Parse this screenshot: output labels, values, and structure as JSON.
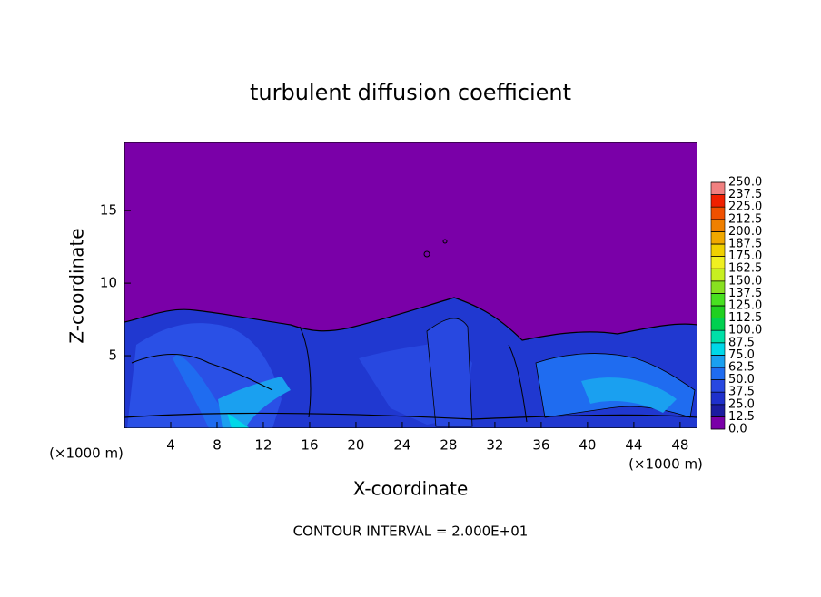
{
  "chart_data": {
    "type": "contour",
    "title": "turbulent diffusion coefficient",
    "x_label": "X-coordinate",
    "y_label": "Z-coordinate",
    "x_unit": "(×1000 m)",
    "x_unit_right": "(×1000 m)",
    "footer": "CONTOUR INTERVAL = 2.000E+01",
    "xlim": [
      0,
      49.5
    ],
    "xticks": [
      4,
      8,
      12,
      16,
      20,
      24,
      28,
      32,
      36,
      40,
      44,
      48
    ],
    "ylim": [
      0,
      19.7
    ],
    "yticks": [
      5,
      10,
      15
    ],
    "clim": [
      0,
      250
    ],
    "cticks": [
      {
        "value": 0,
        "label": "0.0"
      },
      12.5,
      {
        "value": 25,
        "label": "25.0"
      },
      37.5,
      {
        "value": 50,
        "label": "50.0"
      },
      62.5,
      {
        "value": 75,
        "label": "75.0"
      },
      87.5,
      {
        "value": 100,
        "label": "100.0"
      },
      112.5,
      {
        "value": 125,
        "label": "125.0"
      },
      137.5,
      {
        "value": 150,
        "label": "150.0"
      },
      162.5,
      {
        "value": 175,
        "label": "175.0"
      },
      187.5,
      {
        "value": 200,
        "label": "200.0"
      },
      212.5,
      {
        "value": 225,
        "label": "225.0"
      },
      237.5,
      {
        "value": 250,
        "label": "250.0"
      }
    ],
    "colors": [
      "#7a00a8",
      "#1c1ca0",
      "#1f30cc",
      "#2848e0",
      "#1f6cf0",
      "#1aa0f0",
      "#00d8e8",
      "#00e0a8",
      "#00d050",
      "#20d020",
      "#48e020",
      "#88e020",
      "#c8f020",
      "#f0f020",
      "#f0d000",
      "#f0a800",
      "#f08000",
      "#f05000",
      "#f02000",
      "#f08080"
    ]
  }
}
